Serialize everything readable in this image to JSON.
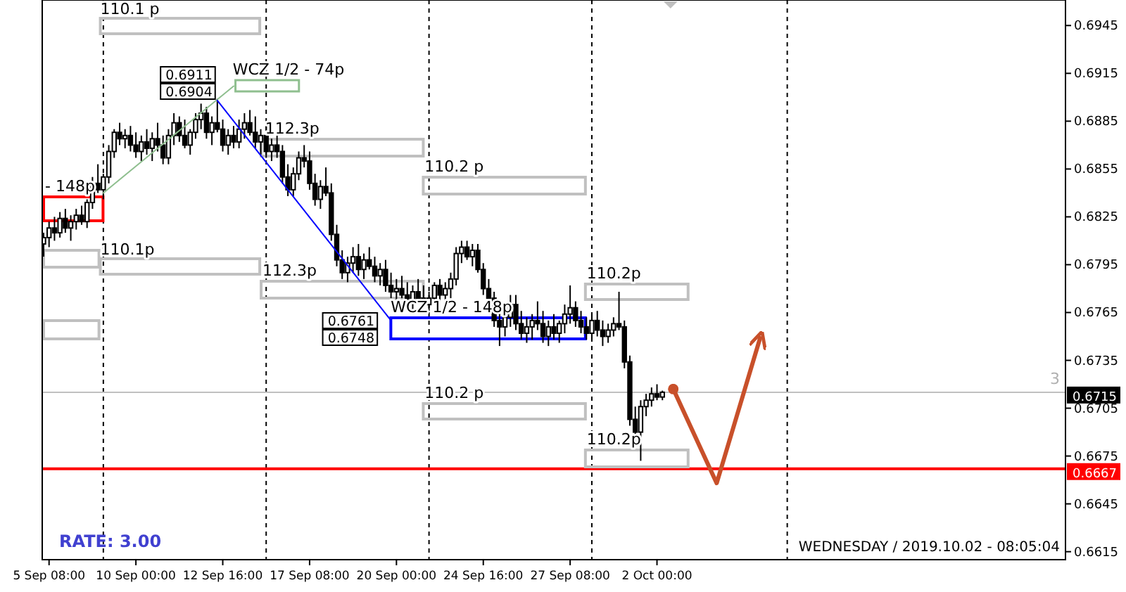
{
  "chart_data": {
    "type": "candlestick",
    "categories": [
      null,
      "5 Sep 08:00",
      null,
      null,
      null,
      null,
      null,
      null,
      null,
      null,
      null,
      null,
      null,
      null,
      null,
      null,
      null,
      "10 Sep 00:00",
      null,
      null,
      null,
      null,
      null,
      null,
      null,
      null,
      null,
      null,
      null,
      null,
      null,
      null,
      null,
      "12 Sep 16:00",
      null,
      null,
      null,
      null,
      null,
      null,
      null,
      null,
      null,
      null,
      null,
      null,
      null,
      null,
      null,
      "17 Sep 08:00",
      null,
      null,
      null,
      null,
      null,
      null,
      null,
      null,
      null,
      null,
      null,
      null,
      null,
      null,
      null,
      "20 Sep 00:00",
      null,
      null,
      null,
      null,
      null,
      null,
      null,
      null,
      null,
      null,
      null,
      null,
      null,
      null,
      null,
      "24 Sep 16:00",
      null,
      null,
      null,
      null,
      null,
      null,
      null,
      null,
      null,
      null,
      null,
      null,
      null,
      null,
      null,
      "27 Sep 08:00",
      null,
      null,
      null,
      null,
      null,
      null,
      null,
      null,
      null,
      null,
      null,
      null,
      null,
      null,
      null,
      "2 Oct 00:00",
      null,
      null,
      null,
      null,
      null,
      null,
      null,
      null,
      null,
      null,
      null,
      null,
      null,
      null,
      null,
      null,
      null,
      null,
      null,
      null,
      null,
      null,
      null,
      null,
      null,
      null,
      null,
      null,
      null,
      null,
      null,
      null,
      null,
      null,
      null,
      null,
      null,
      null,
      null,
      null,
      null,
      null,
      null,
      null,
      null,
      null,
      null,
      null,
      null,
      null,
      null,
      null,
      null,
      null,
      null,
      null,
      null,
      null,
      null,
      null,
      null,
      null,
      null,
      null,
      null,
      null,
      null,
      null,
      null,
      null,
      null,
      null,
      null,
      null,
      null
    ],
    "ohlc": [
      [
        0.6808,
        0.6815,
        0.68,
        0.6812
      ],
      [
        0.6812,
        0.6822,
        0.6806,
        0.6818
      ],
      [
        0.6818,
        0.6825,
        0.681,
        0.6815
      ],
      [
        0.6815,
        0.6828,
        0.6812,
        0.6824
      ],
      [
        0.6824,
        0.683,
        0.6815,
        0.6818
      ],
      [
        0.6818,
        0.6826,
        0.681,
        0.6822
      ],
      [
        0.6822,
        0.683,
        0.6817,
        0.6826
      ],
      [
        0.6826,
        0.6832,
        0.682,
        0.6822
      ],
      [
        0.6822,
        0.6836,
        0.6818,
        0.6834
      ],
      [
        0.6834,
        0.685,
        0.683,
        0.6846
      ],
      [
        0.6846,
        0.6858,
        0.684,
        0.6842
      ],
      [
        0.6842,
        0.6852,
        0.6836,
        0.685
      ],
      [
        0.685,
        0.687,
        0.6846,
        0.6866
      ],
      [
        0.6866,
        0.688,
        0.6862,
        0.6878
      ],
      [
        0.6878,
        0.6884,
        0.687,
        0.6874
      ],
      [
        0.6874,
        0.688,
        0.6868,
        0.6876
      ],
      [
        0.6876,
        0.6882,
        0.6866,
        0.687
      ],
      [
        0.687,
        0.6878,
        0.6862,
        0.6866
      ],
      [
        0.6866,
        0.6876,
        0.686,
        0.6872
      ],
      [
        0.6872,
        0.688,
        0.6864,
        0.6868
      ],
      [
        0.6868,
        0.6878,
        0.686,
        0.6874
      ],
      [
        0.6874,
        0.6884,
        0.6866,
        0.687
      ],
      [
        0.687,
        0.6876,
        0.6858,
        0.6862
      ],
      [
        0.6862,
        0.688,
        0.6858,
        0.6876
      ],
      [
        0.6876,
        0.689,
        0.687,
        0.6884
      ],
      [
        0.6884,
        0.6888,
        0.6872,
        0.6876
      ],
      [
        0.6876,
        0.6886,
        0.6868,
        0.687
      ],
      [
        0.687,
        0.688,
        0.6864,
        0.6878
      ],
      [
        0.6878,
        0.689,
        0.6874,
        0.6886
      ],
      [
        0.6886,
        0.6896,
        0.688,
        0.689
      ],
      [
        0.689,
        0.6894,
        0.6874,
        0.6878
      ],
      [
        0.6878,
        0.6888,
        0.687,
        0.6884
      ],
      [
        0.6884,
        0.6899,
        0.6878,
        0.688
      ],
      [
        0.688,
        0.6886,
        0.6866,
        0.687
      ],
      [
        0.687,
        0.688,
        0.6864,
        0.6876
      ],
      [
        0.6876,
        0.6882,
        0.6868,
        0.6872
      ],
      [
        0.6872,
        0.6886,
        0.6868,
        0.688
      ],
      [
        0.688,
        0.689,
        0.6874,
        0.6884
      ],
      [
        0.6884,
        0.6892,
        0.6876,
        0.6878
      ],
      [
        0.6878,
        0.6888,
        0.6868,
        0.6872
      ],
      [
        0.6872,
        0.688,
        0.6864,
        0.6876
      ],
      [
        0.6876,
        0.6882,
        0.6862,
        0.6866
      ],
      [
        0.6866,
        0.6874,
        0.686,
        0.687
      ],
      [
        0.687,
        0.6876,
        0.6862,
        0.6866
      ],
      [
        0.6866,
        0.687,
        0.6846,
        0.685
      ],
      [
        0.685,
        0.6858,
        0.6838,
        0.6842
      ],
      [
        0.6842,
        0.6856,
        0.6838,
        0.6852
      ],
      [
        0.6852,
        0.6866,
        0.6848,
        0.6862
      ],
      [
        0.6862,
        0.687,
        0.6856,
        0.686
      ],
      [
        0.686,
        0.6866,
        0.6842,
        0.6846
      ],
      [
        0.6846,
        0.6852,
        0.6832,
        0.6836
      ],
      [
        0.6836,
        0.6848,
        0.683,
        0.6844
      ],
      [
        0.6844,
        0.6856,
        0.6838,
        0.684
      ],
      [
        0.684,
        0.6846,
        0.681,
        0.6814
      ],
      [
        0.6814,
        0.682,
        0.6794,
        0.6798
      ],
      [
        0.6798,
        0.6804,
        0.6786,
        0.679
      ],
      [
        0.679,
        0.68,
        0.6784,
        0.6796
      ],
      [
        0.6796,
        0.6806,
        0.679,
        0.68
      ],
      [
        0.68,
        0.6808,
        0.6788,
        0.6792
      ],
      [
        0.6792,
        0.6802,
        0.6786,
        0.6798
      ],
      [
        0.6798,
        0.6806,
        0.6792,
        0.6794
      ],
      [
        0.6794,
        0.68,
        0.6784,
        0.6788
      ],
      [
        0.6788,
        0.6796,
        0.6782,
        0.6792
      ],
      [
        0.6792,
        0.6798,
        0.6778,
        0.6782
      ],
      [
        0.6782,
        0.679,
        0.6774,
        0.6778
      ],
      [
        0.6778,
        0.6786,
        0.6772,
        0.678
      ],
      [
        0.678,
        0.6788,
        0.6774,
        0.6776
      ],
      [
        0.6776,
        0.6784,
        0.6768,
        0.6772
      ],
      [
        0.6772,
        0.6782,
        0.6766,
        0.6778
      ],
      [
        0.6778,
        0.6786,
        0.6772,
        0.6774
      ],
      [
        0.6774,
        0.6782,
        0.6768,
        0.677
      ],
      [
        0.677,
        0.6778,
        0.6766,
        0.6774
      ],
      [
        0.6774,
        0.6784,
        0.677,
        0.6782
      ],
      [
        0.6782,
        0.6786,
        0.6772,
        0.6776
      ],
      [
        0.6776,
        0.6784,
        0.677,
        0.678
      ],
      [
        0.678,
        0.679,
        0.6774,
        0.6786
      ],
      [
        0.6786,
        0.6806,
        0.6782,
        0.6802
      ],
      [
        0.6802,
        0.681,
        0.6796,
        0.6806
      ],
      [
        0.6806,
        0.681,
        0.6798,
        0.68
      ],
      [
        0.68,
        0.6808,
        0.6794,
        0.6804
      ],
      [
        0.6804,
        0.6808,
        0.679,
        0.6792
      ],
      [
        0.6792,
        0.6796,
        0.6776,
        0.678
      ],
      [
        0.678,
        0.6786,
        0.677,
        0.6774
      ],
      [
        0.6774,
        0.6778,
        0.6756,
        0.676
      ],
      [
        0.676,
        0.677,
        0.6744,
        0.6756
      ],
      [
        0.6756,
        0.6766,
        0.675,
        0.6762
      ],
      [
        0.6762,
        0.6776,
        0.6756,
        0.677
      ],
      [
        0.677,
        0.6776,
        0.6754,
        0.6758
      ],
      [
        0.6758,
        0.6766,
        0.6748,
        0.6752
      ],
      [
        0.6752,
        0.6762,
        0.6746,
        0.6756
      ],
      [
        0.6756,
        0.6764,
        0.6748,
        0.676
      ],
      [
        0.676,
        0.6772,
        0.6754,
        0.6758
      ],
      [
        0.6758,
        0.6766,
        0.6746,
        0.675
      ],
      [
        0.675,
        0.676,
        0.6744,
        0.6756
      ],
      [
        0.6756,
        0.6764,
        0.6748,
        0.6752
      ],
      [
        0.6752,
        0.676,
        0.6746,
        0.6758
      ],
      [
        0.6758,
        0.677,
        0.6752,
        0.6764
      ],
      [
        0.6764,
        0.6782,
        0.6758,
        0.6768
      ],
      [
        0.6768,
        0.6772,
        0.6756,
        0.676
      ],
      [
        0.676,
        0.6766,
        0.6752,
        0.6756
      ],
      [
        0.6756,
        0.6762,
        0.6748,
        0.6752
      ],
      [
        0.6752,
        0.6764,
        0.6748,
        0.676
      ],
      [
        0.676,
        0.6766,
        0.675,
        0.6754
      ],
      [
        0.6754,
        0.676,
        0.6744,
        0.675
      ],
      [
        0.675,
        0.6758,
        0.6746,
        0.6754
      ],
      [
        0.6754,
        0.6762,
        0.675,
        0.6758
      ],
      [
        0.6758,
        0.6778,
        0.6754,
        0.6756
      ],
      [
        0.6756,
        0.676,
        0.673,
        0.6734
      ],
      [
        0.6734,
        0.6738,
        0.6694,
        0.6698
      ],
      [
        0.6698,
        0.6706,
        0.6684,
        0.669
      ],
      [
        0.669,
        0.671,
        0.6672,
        0.6706
      ],
      [
        0.6706,
        0.6714,
        0.67,
        0.671
      ],
      [
        0.671,
        0.6718,
        0.6706,
        0.6714
      ],
      [
        0.6714,
        0.672,
        0.671,
        0.6712
      ],
      [
        0.6712,
        0.6716,
        0.671,
        0.6715
      ],
      null,
      null,
      null,
      null,
      null,
      null,
      null,
      null,
      null,
      null,
      null,
      null,
      null,
      null,
      null,
      null,
      null,
      null,
      null,
      null,
      null,
      null,
      null,
      null,
      null,
      null,
      null,
      null,
      null,
      null,
      null,
      null,
      null,
      null,
      null,
      null,
      null,
      null,
      null,
      null,
      null,
      null,
      null,
      null,
      null,
      null,
      null,
      null,
      null,
      null,
      null,
      null,
      null,
      null,
      null,
      null,
      null,
      null,
      null,
      null,
      null,
      null,
      null,
      null,
      null,
      null,
      null,
      null,
      null,
      null,
      null,
      null,
      null,
      null
    ],
    "series": [
      {
        "type": "line",
        "color": "#8fbf8f",
        "values": [
          null,
          null,
          null,
          null,
          null,
          null,
          null,
          null,
          null,
          null,
          null,
          0.684,
          null,
          null,
          null,
          null,
          null,
          null,
          null,
          null,
          null,
          null,
          null,
          null,
          null,
          null,
          null,
          null,
          null,
          null,
          null,
          null,
          null,
          null,
          null,
          0.6907,
          null,
          null,
          null,
          null,
          null,
          null,
          null,
          null,
          null,
          null,
          null,
          null,
          null,
          null,
          null,
          null,
          null,
          null,
          null,
          null,
          null,
          null,
          null,
          null,
          null,
          null,
          null,
          null,
          null,
          null,
          null,
          null,
          null,
          null,
          null,
          null,
          null,
          null,
          null,
          null,
          null,
          null,
          null,
          null,
          null,
          null,
          null,
          null,
          null,
          null,
          null,
          null,
          null,
          null,
          null,
          null,
          null,
          null,
          null,
          null,
          null,
          null,
          null,
          null,
          null,
          null,
          null,
          null,
          null,
          null,
          null,
          null,
          null,
          null,
          null,
          null,
          null,
          null,
          null,
          null,
          null,
          null,
          null,
          null,
          null,
          null,
          null,
          null,
          null,
          null,
          null,
          null,
          null,
          null,
          null,
          null,
          null,
          null,
          null,
          null,
          null,
          null,
          null,
          null,
          null,
          null,
          null,
          null,
          null,
          null,
          null,
          null,
          null,
          null,
          null,
          null,
          null,
          null,
          null,
          null,
          null,
          null,
          null,
          null,
          null,
          null,
          null,
          null,
          null,
          null,
          null,
          null,
          null,
          null,
          null,
          null,
          null,
          null,
          null,
          null,
          null,
          null,
          null,
          null,
          null,
          null,
          null,
          null,
          null,
          null,
          null,
          null,
          null
        ]
      },
      {
        "type": "line",
        "color": "#0000ff",
        "values": [
          null,
          null,
          null,
          null,
          null,
          null,
          null,
          null,
          null,
          null,
          null,
          null,
          null,
          null,
          null,
          null,
          null,
          null,
          null,
          null,
          null,
          null,
          null,
          null,
          null,
          null,
          null,
          null,
          null,
          null,
          null,
          null,
          0.6898,
          null,
          null,
          null,
          null,
          null,
          null,
          null,
          null,
          null,
          null,
          null,
          null,
          null,
          null,
          null,
          null,
          null,
          null,
          null,
          null,
          null,
          null,
          null,
          null,
          null,
          null,
          null,
          null,
          null,
          null,
          null,
          0.676,
          null,
          null,
          null,
          null,
          null,
          null,
          null,
          null,
          null,
          null,
          null,
          null,
          null,
          null,
          null,
          null,
          null,
          null,
          null,
          null,
          null,
          null,
          null,
          null,
          null,
          null,
          null,
          null,
          null,
          null,
          null,
          null,
          null,
          null,
          null,
          null,
          null,
          null,
          null,
          null,
          null,
          null,
          null,
          null,
          null,
          null,
          null,
          null,
          null,
          null,
          null,
          null,
          null,
          null,
          null,
          null,
          null,
          null,
          null,
          null,
          null,
          null,
          null,
          null,
          null,
          null,
          null,
          null,
          null,
          null,
          null,
          null,
          null,
          null,
          null,
          null,
          null,
          null,
          null,
          null,
          null,
          null,
          null,
          null,
          null,
          null,
          null,
          null,
          null,
          null,
          null,
          null,
          null,
          null,
          null,
          null,
          null,
          null,
          null,
          null,
          null,
          null,
          null,
          null,
          null,
          null,
          null,
          null,
          null,
          null,
          null,
          null,
          null,
          null,
          null,
          null,
          null,
          null,
          null,
          null,
          null,
          null,
          null,
          null
        ]
      },
      {
        "type": "line",
        "color": "#c8502a",
        "values": [
          null,
          null,
          null,
          null,
          null,
          null,
          null,
          null,
          null,
          null,
          null,
          null,
          null,
          null,
          null,
          null,
          null,
          null,
          null,
          null,
          null,
          null,
          null,
          null,
          null,
          null,
          null,
          null,
          null,
          null,
          null,
          null,
          null,
          null,
          null,
          null,
          null,
          null,
          null,
          null,
          null,
          null,
          null,
          null,
          null,
          null,
          null,
          null,
          null,
          null,
          null,
          null,
          null,
          null,
          null,
          null,
          null,
          null,
          null,
          null,
          null,
          null,
          null,
          null,
          null,
          null,
          null,
          null,
          null,
          null,
          null,
          null,
          null,
          null,
          null,
          null,
          null,
          null,
          null,
          null,
          null,
          null,
          null,
          null,
          null,
          null,
          null,
          null,
          null,
          null,
          null,
          null,
          null,
          null,
          null,
          null,
          null,
          null,
          null,
          null,
          null,
          null,
          null,
          null,
          null,
          null,
          null,
          null,
          null,
          null,
          null,
          null,
          null,
          null,
          null,
          null,
          0.6717,
          null,
          null,
          null,
          null,
          null,
          null,
          null,
          0.6658,
          null,
          null,
          null,
          null,
          null,
          null,
          null,
          0.6749,
          null,
          null,
          null,
          null,
          null,
          null,
          null,
          null,
          null,
          null,
          null,
          null,
          null,
          null,
          null,
          null,
          null,
          null,
          null,
          null,
          null,
          null,
          null,
          null,
          null,
          null,
          null,
          null,
          null,
          null,
          null,
          null,
          null,
          null,
          null,
          null,
          null,
          null,
          null,
          null,
          null,
          null,
          null,
          null,
          null,
          null,
          null,
          null,
          null,
          null,
          null,
          null,
          null,
          null,
          null,
          null
        ]
      }
    ],
    "ylim": [
      0.661,
      0.6961
    ],
    "yticks": [
      0.6945,
      0.6915,
      0.6885,
      0.6855,
      0.6825,
      0.6795,
      0.6765,
      0.6735,
      0.6705,
      0.6675,
      0.6645,
      0.6615
    ],
    "ref_lines": [
      {
        "axis": "y",
        "value": 0.6667,
        "label": "0.6667",
        "color": "#ff0000",
        "line_style": "solid"
      },
      {
        "axis": "y",
        "value": 0.6715,
        "label": "0.6715",
        "color": "#c0c0c0",
        "line_style": "solid"
      }
    ],
    "annotations": [
      "RATE: 3.00",
      "WEDNESDAY / 2019.10.02 - 08:05:04",
      "3",
      "110.1 p",
      "110.1p",
      "112.3p",
      "112.3p",
      "110.2 p",
      "110.2 p",
      "110.2p",
      "110.2p",
      "- 148p",
      "WCZ 1/2 - 74p",
      "WCZ 1/2 - 148p",
      "0.6911",
      "0.6904",
      "0.6761",
      "0.6748"
    ]
  }
}
